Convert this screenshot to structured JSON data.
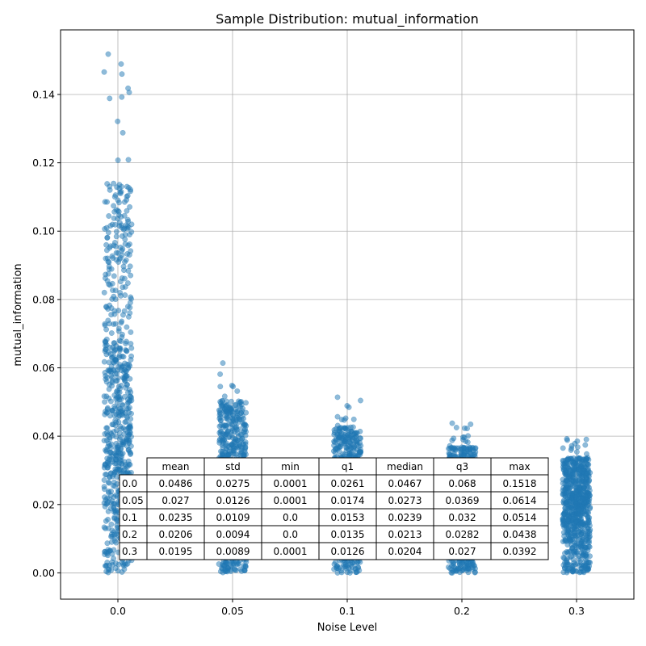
{
  "chart_data": {
    "type": "scatter",
    "title": "Sample Distribution: mutual_information",
    "xlabel": "Noise Level",
    "ylabel": "mutual_information",
    "categories": [
      "0.0",
      "0.05",
      "0.1",
      "0.2",
      "0.3"
    ],
    "ylim": [
      -0.0077,
      0.1589
    ],
    "yticks": [
      "0.00",
      "0.02",
      "0.04",
      "0.06",
      "0.08",
      "0.10",
      "0.12",
      "0.14"
    ],
    "grid": true,
    "point_color": "#1f77b4",
    "series": [
      {
        "category": "0.0",
        "min": 0.0001,
        "q1": 0.0261,
        "median": 0.0467,
        "q3": 0.068,
        "max": 0.1518
      },
      {
        "category": "0.05",
        "min": 0.0001,
        "q1": 0.0174,
        "median": 0.0273,
        "q3": 0.0369,
        "max": 0.0614
      },
      {
        "category": "0.1",
        "min": 0.0,
        "q1": 0.0153,
        "median": 0.0239,
        "q3": 0.032,
        "max": 0.0514
      },
      {
        "category": "0.2",
        "min": 0.0,
        "q1": 0.0135,
        "median": 0.0213,
        "q3": 0.0282,
        "max": 0.0438
      },
      {
        "category": "0.3",
        "min": 0.0001,
        "q1": 0.0126,
        "median": 0.0204,
        "q3": 0.027,
        "max": 0.0392
      }
    ],
    "stats_table": {
      "columns": [
        "mean",
        "std",
        "min",
        "q1",
        "median",
        "q3",
        "max"
      ],
      "rows": [
        {
          "label": "0.0",
          "values": [
            "0.0486",
            "0.0275",
            "0.0001",
            "0.0261",
            "0.0467",
            "0.068",
            "0.1518"
          ]
        },
        {
          "label": "0.05",
          "values": [
            "0.027",
            "0.0126",
            "0.0001",
            "0.0174",
            "0.0273",
            "0.0369",
            "0.0614"
          ]
        },
        {
          "label": "0.1",
          "values": [
            "0.0235",
            "0.0109",
            "0.0",
            "0.0153",
            "0.0239",
            "0.032",
            "0.0514"
          ]
        },
        {
          "label": "0.2",
          "values": [
            "0.0206",
            "0.0094",
            "0.0",
            "0.0135",
            "0.0213",
            "0.0282",
            "0.0438"
          ]
        },
        {
          "label": "0.3",
          "values": [
            "0.0195",
            "0.0089",
            "0.0001",
            "0.0126",
            "0.0204",
            "0.027",
            "0.0392"
          ]
        }
      ]
    }
  }
}
